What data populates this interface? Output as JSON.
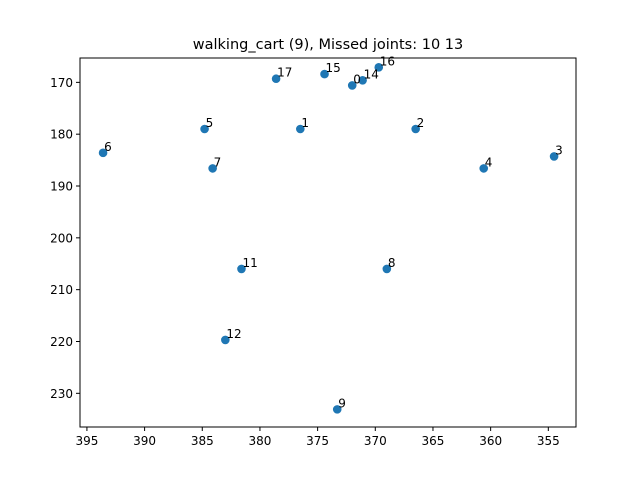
{
  "chart_data": {
    "type": "scatter",
    "title": "walking_cart (9), Missed joints: 10 13",
    "xlabel": "",
    "ylabel": "",
    "xlim": [
      395.6,
      352.6
    ],
    "ylim": [
      236.5,
      165.3
    ],
    "x_inverted": true,
    "y_inverted": true,
    "grid": false,
    "legend": "none",
    "xticks": [
      395,
      390,
      385,
      380,
      375,
      370,
      365,
      360,
      355
    ],
    "yticks": [
      170,
      180,
      190,
      200,
      210,
      220,
      230
    ],
    "marker_color": "#1f77b4",
    "points": [
      {
        "label": "0",
        "x": 372.0,
        "y": 170.6
      },
      {
        "label": "1",
        "x": 376.5,
        "y": 179.0
      },
      {
        "label": "2",
        "x": 366.5,
        "y": 179.0
      },
      {
        "label": "3",
        "x": 354.5,
        "y": 184.3
      },
      {
        "label": "4",
        "x": 360.6,
        "y": 186.6
      },
      {
        "label": "5",
        "x": 384.8,
        "y": 179.0
      },
      {
        "label": "6",
        "x": 393.6,
        "y": 183.6
      },
      {
        "label": "7",
        "x": 384.1,
        "y": 186.6
      },
      {
        "label": "8",
        "x": 369.0,
        "y": 206.0
      },
      {
        "label": "9",
        "x": 373.3,
        "y": 233.1
      },
      {
        "label": "11",
        "x": 381.6,
        "y": 206.0
      },
      {
        "label": "12",
        "x": 383.0,
        "y": 219.7
      },
      {
        "label": "14",
        "x": 371.1,
        "y": 169.6
      },
      {
        "label": "15",
        "x": 374.4,
        "y": 168.4
      },
      {
        "label": "16",
        "x": 369.7,
        "y": 167.1
      },
      {
        "label": "17",
        "x": 378.6,
        "y": 169.3
      }
    ]
  }
}
